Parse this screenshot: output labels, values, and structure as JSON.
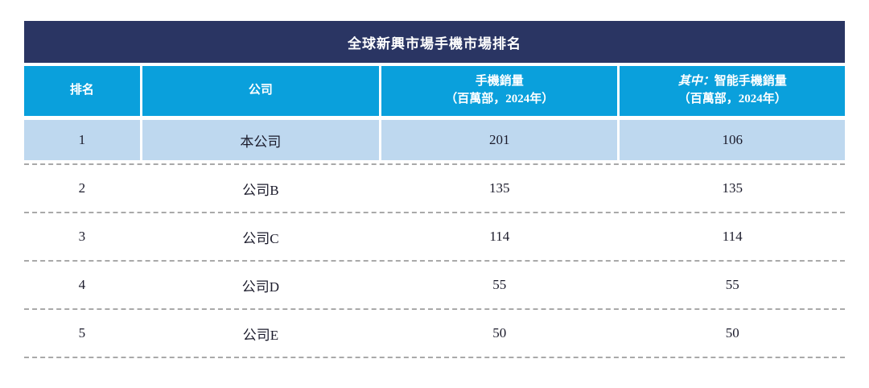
{
  "table": {
    "title": "全球新興市場手機市場排名",
    "header": {
      "rank": "排名",
      "company": "公司",
      "sales_line1": "手機銷量",
      "sales_line2": "（百萬部，2024年）",
      "smart_prefix_italic": "其中：",
      "smart_line1": "智能手機銷量",
      "smart_line2": "（百萬部，2024年）"
    },
    "rows": [
      {
        "rank": "1",
        "company": "本公司",
        "sales": "201",
        "smart": "106",
        "highlighted": true
      },
      {
        "rank": "2",
        "company": "公司B",
        "sales": "135",
        "smart": "135",
        "highlighted": false
      },
      {
        "rank": "3",
        "company": "公司C",
        "sales": "114",
        "smart": "114",
        "highlighted": false
      },
      {
        "rank": "4",
        "company": "公司D",
        "sales": "55",
        "smart": "55",
        "highlighted": false
      },
      {
        "rank": "5",
        "company": "公司E",
        "sales": "50",
        "smart": "50",
        "highlighted": false
      }
    ],
    "colors": {
      "title_bg": "#2A3563",
      "header_bg": "#0AA0DC",
      "highlight_row_bg": "#BED8EF",
      "text_dark": "#1B1B2B",
      "dash": "#A9A9A9"
    }
  }
}
